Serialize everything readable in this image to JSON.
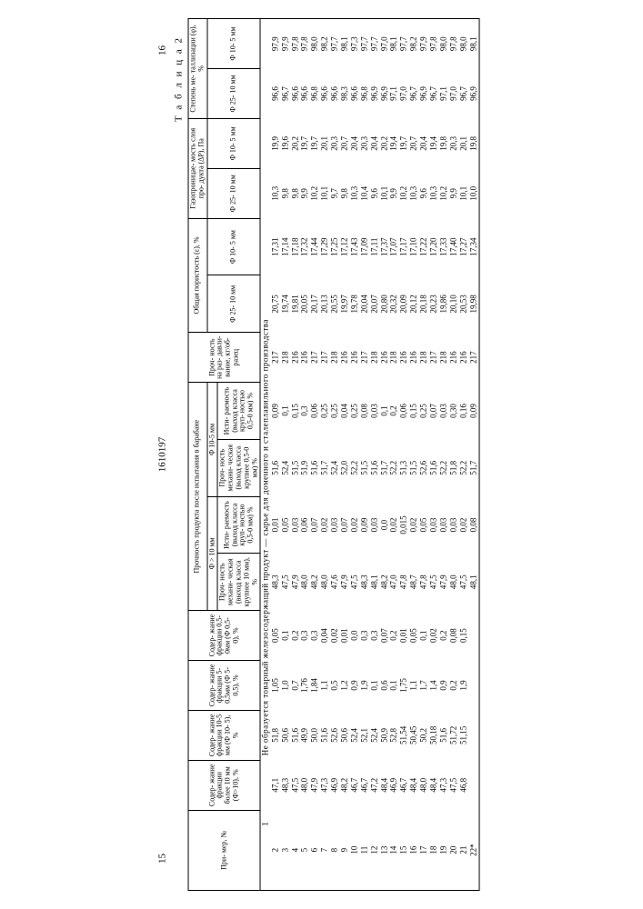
{
  "page_left": "15",
  "doc_no": "1610197",
  "page_right": "16",
  "table_label": "Т а б л и ц а  2",
  "span_note": "Не образуется товарный железосодержащий продукт — сырье для доменного и сталеплавильного производства",
  "headers": {
    "ex": "При-\nмер,\n№",
    "f10p": "Содер-\nжание\nфракции\nболее\n10 мм\n(Ф>10),\n%",
    "f10_5": "Содер-\nжание\nфракции\n10-5 мм\n(Ф 10-\n5), %",
    "f5_05": "Содер-\nжание\nфракции\n5-0,5мм\n(Ф 5-\n0,5),\n%",
    "f05_0": "Содер-\nжание\nфракции\n0,5-0мм\n(Ф 0,5-\n0), %",
    "strength_group": "Прочность продукта после испытания\nв барабане",
    "sg_a": "Ф > 10 мм",
    "sg_b": "Ф 10-5 мм",
    "mech10": "Проч-\nность\nмехани-\nческая\n(выход\nкласса\nкрупнее\n10 мм),\n%",
    "abr10": "Исти-\nраемость\n(выход\nкласса\nкруп-\nностью\n0,5-0 мм)\n%",
    "mech5": "Проч-\nность\nмехани-\nческая\n(выход\nкласса\nкрупнее\n0,5-0 мм)\n%",
    "abr5": "Исти-\nраемость\n(выход\nкласса\nкруп-\nностью\n0,5-0 мм)\n%",
    "crush": "Проч-\nность\nна раз-\nдавли-\nвание,\nкг/об-\nразец",
    "poros_group": "Общая пористость\n(ε), %",
    "por_a": "Ф 25-\n10 мм",
    "por_b": "Ф 10-\n5 мм",
    "gas_group": "Газопроницае-\nмость слоя про-\nдукта (ΔP), Па",
    "gas_a": "Ф 25-\n10 мм",
    "gas_b": "Ф 10-\n5 мм",
    "met_group": "Степень ме-\nталлизации\n(φ), %",
    "met_a": "Ф 25-\n10 мм",
    "met_b": "Ф 10-\n5 мм"
  },
  "rows": [
    {
      "n": "1",
      "special": true
    },
    {
      "n": "2",
      "a": "47,1",
      "b": "51,8",
      "c": "1,05",
      "d": "0,05",
      "e": "48,3",
      "f": "0,01",
      "g": "51,6",
      "h": "0,09",
      "i": "217",
      "j": "20,75",
      "k": "17,31",
      "l": "10,3",
      "m": "19,9",
      "o": "96,6",
      "p": "97,9"
    },
    {
      "n": "3",
      "a": "48,3",
      "b": "50,6",
      "c": "1,0",
      "d": "0,1",
      "e": "47,5",
      "f": "0,05",
      "g": "52,4",
      "h": "0,1",
      "i": "218",
      "j": "19,74",
      "k": "17,14",
      "l": "9,8",
      "m": "19,6",
      "o": "96,7",
      "p": "97,9"
    },
    {
      "n": "4",
      "a": "47,5",
      "b": "51,6",
      "c": "0,7",
      "d": "0,2",
      "e": "47,9",
      "f": "0,03",
      "g": "51,5",
      "h": "0,15",
      "i": "216",
      "j": "19,81",
      "k": "17,18",
      "l": "9,8",
      "m": "20,2",
      "o": "96,6",
      "p": "97,8"
    },
    {
      "n": "5",
      "a": "48,0",
      "b": "49,9",
      "c": "1,76",
      "d": "0,3",
      "e": "48,0",
      "f": "0,06",
      "g": "51,9",
      "h": "0,3",
      "i": "216",
      "j": "20,05",
      "k": "17,32",
      "l": "9,9",
      "m": "19,7",
      "o": "96,6",
      "p": "97,8"
    },
    {
      "n": "6",
      "a": "47,9",
      "b": "50,0",
      "c": "1,84",
      "d": "0,3",
      "e": "48,2",
      "f": "0,07",
      "g": "51,6",
      "h": "0,06",
      "i": "217",
      "j": "20,17",
      "k": "17,44",
      "l": "10,2",
      "m": "19,7",
      "o": "96,8",
      "p": "98,0"
    },
    {
      "n": "7",
      "a": "47,3",
      "b": "51,6",
      "c": "1,1",
      "d": "0,04",
      "e": "48,0",
      "f": "0,02",
      "g": "51,7",
      "h": "0,25",
      "i": "217",
      "j": "20,13",
      "k": "17,29",
      "l": "10,1",
      "m": "20,1",
      "o": "96,6",
      "p": "98,2"
    },
    {
      "n": "8",
      "a": "46,9",
      "b": "52,6",
      "c": "0,5",
      "d": "0,02",
      "e": "47,6",
      "f": "0,03",
      "g": "52,4",
      "h": "0,25",
      "i": "218",
      "j": "20,55",
      "k": "17,25",
      "l": "9,7",
      "m": "20,3",
      "o": "96,6",
      "p": "97,7"
    },
    {
      "n": "9",
      "a": "48,2",
      "b": "50,6",
      "c": "1,2",
      "d": "0,01",
      "e": "47,9",
      "f": "0,07",
      "g": "52,0",
      "h": "0,04",
      "i": "216",
      "j": "19,97",
      "k": "17,12",
      "l": "9,8",
      "m": "20,7",
      "o": "98,3",
      "p": "98,1"
    },
    {
      "n": "10",
      "a": "46,7",
      "b": "52,4",
      "c": "0,9",
      "d": "0,0",
      "e": "47,5",
      "f": "0,02",
      "g": "52,2",
      "h": "0,25",
      "i": "216",
      "j": "19,78",
      "k": "17,43",
      "l": "10,3",
      "m": "20,4",
      "o": "96,6",
      "p": "97,3"
    },
    {
      "n": "11",
      "a": "46,7",
      "b": "52,1",
      "c": "1,9",
      "d": "0,3",
      "e": "48,3",
      "f": "0,09",
      "g": "51,5",
      "h": "0,08",
      "i": "217",
      "j": "20,04",
      "k": "17,09",
      "l": "10,4",
      "m": "20,3",
      "o": "96,8",
      "p": "97,7"
    },
    {
      "n": "12",
      "a": "47,2",
      "b": "52,4",
      "c": "0,1",
      "d": "0,3",
      "e": "48,1",
      "f": "0,03",
      "g": "51,6",
      "h": "0,03",
      "i": "218",
      "j": "20,07",
      "k": "17,11",
      "l": "9,6",
      "m": "20,4",
      "o": "96,9",
      "p": "97,7"
    },
    {
      "n": "13",
      "a": "48,4",
      "b": "50,9",
      "c": "0,6",
      "d": "0,07",
      "e": "48,2",
      "f": "0,0",
      "g": "51,7",
      "h": "0,1",
      "i": "216",
      "j": "20,80",
      "k": "17,37",
      "l": "10,1",
      "m": "20,2",
      "o": "96,9",
      "p": "97,0"
    },
    {
      "n": "14",
      "a": "46,9",
      "b": "52,8",
      "c": "0,1",
      "d": "0,2",
      "e": "47,0",
      "f": "0,02",
      "g": "52,2",
      "h": "0,2",
      "i": "218",
      "j": "20,32",
      "k": "17,07",
      "l": "9,9",
      "m": "19,4",
      "o": "97,1",
      "p": "98,1"
    },
    {
      "n": "15",
      "a": "46,7",
      "b": "51,54",
      "c": "1,75",
      "d": "0,01",
      "e": "47,8",
      "f": "0,015",
      "g": "51,3",
      "h": "0,06",
      "i": "216",
      "j": "20,09",
      "k": "17,17",
      "l": "10,2",
      "m": "19,7",
      "o": "97,0",
      "p": "97,7"
    },
    {
      "n": "16",
      "a": "48,4",
      "b": "50,45",
      "c": "1,1",
      "d": "0,05",
      "e": "48,7",
      "f": "0,02",
      "g": "51,5",
      "h": "0,15",
      "i": "216",
      "j": "20,12",
      "k": "17,10",
      "l": "10,3",
      "m": "20,7",
      "o": "96,7",
      "p": "98,2"
    },
    {
      "n": "17",
      "a": "48,0",
      "b": "50,2",
      "c": "1,7",
      "d": "0,1",
      "e": "47,8",
      "f": "0,05",
      "g": "52,6",
      "h": "0,25",
      "i": "218",
      "j": "20,18",
      "k": "17,22",
      "l": "9,6",
      "m": "20,4",
      "o": "96,9",
      "p": "97,9"
    },
    {
      "n": "18",
      "a": "48,4",
      "b": "50,18",
      "c": "1,4",
      "d": "0,02",
      "e": "47,5",
      "f": "0,03",
      "g": "51,6",
      "h": "0,07",
      "i": "217",
      "j": "20,23",
      "k": "17,20",
      "l": "10,3",
      "m": "19,4",
      "o": "96,7",
      "p": "97,8"
    },
    {
      "n": "19",
      "a": "47,3",
      "b": "51,6",
      "c": "0,9",
      "d": "0,2",
      "e": "47,9",
      "f": "0,03",
      "g": "52,2",
      "h": "0,03",
      "i": "218",
      "j": "19,86",
      "k": "17,33",
      "l": "10,2",
      "m": "19,8",
      "o": "97,1",
      "p": "98,0"
    },
    {
      "n": "20",
      "a": "47,5",
      "b": "51,72",
      "c": "0,2",
      "d": "0,08",
      "e": "48,0",
      "f": "0,03",
      "g": "51,8",
      "h": "0,30",
      "i": "216",
      "j": "20,10",
      "k": "17,40",
      "l": "9,9",
      "m": "20,3",
      "o": "97,0",
      "p": "97,8"
    },
    {
      "n": "21",
      "a": "46,8",
      "b": "51,15",
      "c": "1,9",
      "d": "0,15",
      "e": "47,5",
      "f": "0,02",
      "g": "52,2",
      "h": "0,16",
      "i": "216",
      "j": "20,53",
      "k": "17,27",
      "l": "10,1",
      "m": "20,1",
      "o": "96,7",
      "p": "98,0"
    },
    {
      "n": "22*",
      "a": "",
      "b": "",
      "c": "",
      "d": "",
      "e": "48,1",
      "f": "0,08",
      "g": "51,7",
      "h": "0,09",
      "i": "217",
      "j": "19,98",
      "k": "17,34",
      "l": "10,0",
      "m": "19,8",
      "o": "96,9",
      "p": "98,1"
    }
  ],
  "style": {
    "bg": "#ffffff",
    "fg": "#000000",
    "border": "#000000",
    "font_body_pt": 9,
    "font_header_pt": 8
  }
}
